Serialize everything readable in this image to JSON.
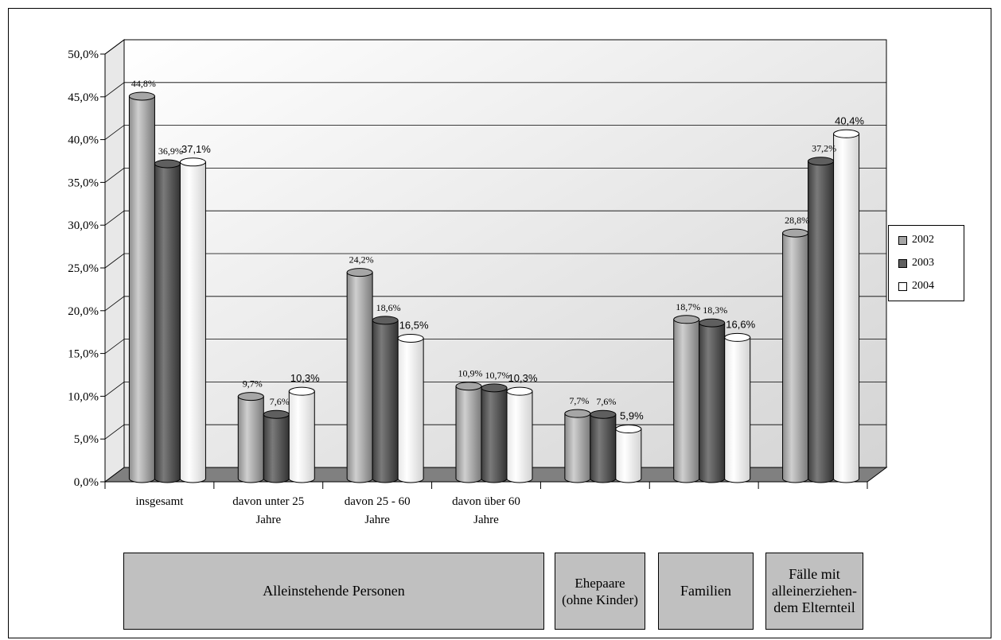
{
  "chart_data": {
    "type": "bar",
    "categories": [
      "insgesamt",
      "davon unter 25 Jahre",
      "davon 25 - 60 Jahre",
      "davon über 60 Jahre",
      "",
      "",
      ""
    ],
    "category_lines": [
      [
        "insgesamt"
      ],
      [
        "davon unter 25",
        "Jahre"
      ],
      [
        "davon 25 - 60",
        "Jahre"
      ],
      [
        "davon über 60",
        "Jahre"
      ],
      [
        ""
      ],
      [
        ""
      ],
      [
        ""
      ]
    ],
    "series": [
      {
        "name": "2002",
        "color": "#a6a6a6",
        "values": [
          44.8,
          9.7,
          24.2,
          10.9,
          7.7,
          18.7,
          28.8
        ],
        "labels": [
          "44,8%",
          "9,7%",
          "24,2%",
          "10,9%",
          "7,7%",
          "18,7%",
          "28,8%"
        ]
      },
      {
        "name": "2003",
        "color": "#5f5f5f",
        "values": [
          36.9,
          7.6,
          18.6,
          10.7,
          7.6,
          18.3,
          37.2
        ],
        "labels": [
          "36,9%",
          "7,6%",
          "18,6%",
          "10,7%",
          "7,6%",
          "18,3%",
          "37,2%"
        ]
      },
      {
        "name": "2004",
        "color": "#ffffff",
        "values": [
          37.1,
          10.3,
          16.5,
          10.3,
          5.9,
          16.6,
          40.4
        ],
        "labels": [
          "37,1%",
          "10,3%",
          "16,5%",
          "10,3%",
          "5,9%",
          "16,6%",
          "40,4%"
        ]
      }
    ],
    "yticks": [
      "0,0%",
      "5,0%",
      "10,0%",
      "15,0%",
      "20,0%",
      "25,0%",
      "30,0%",
      "35,0%",
      "40,0%",
      "45,0%",
      "50,0%"
    ],
    "ylim": [
      0,
      50
    ],
    "grid": true,
    "legend_position": "right",
    "groups": [
      {
        "label": "Alleinstehende Personen"
      },
      {
        "label": "Ehepaare\n(ohne Kinder)"
      },
      {
        "label": "Familien"
      },
      {
        "label": "Fälle mit\nalleinerziehen-\ndem Elternteil"
      }
    ]
  }
}
